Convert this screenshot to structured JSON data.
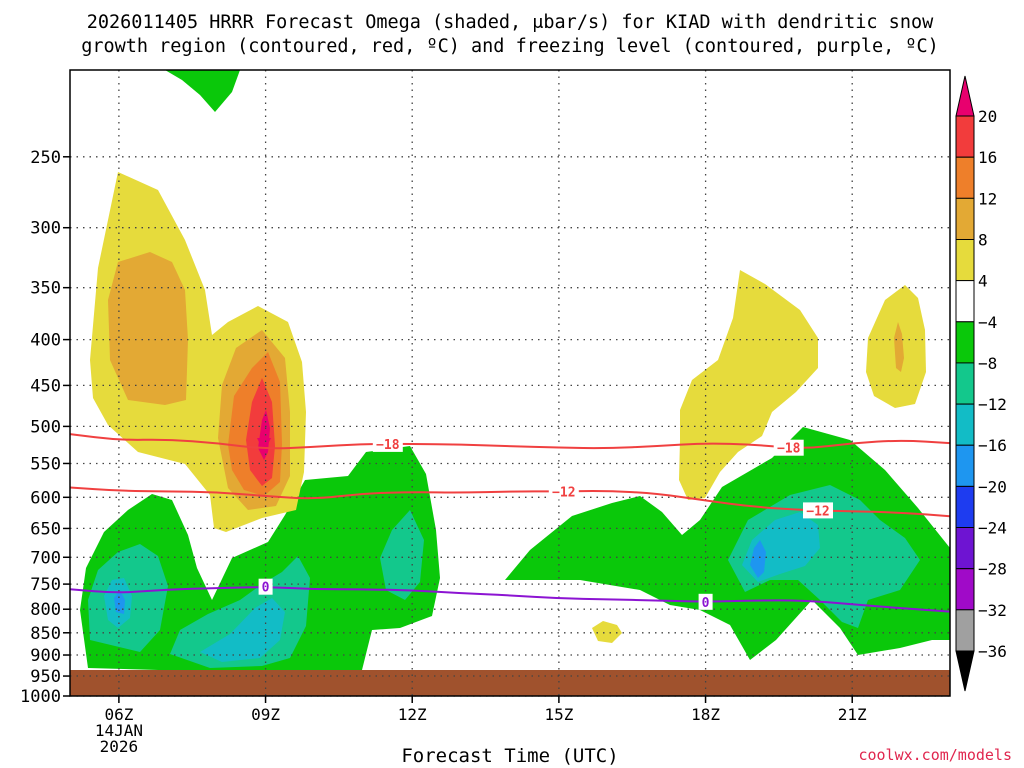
{
  "chart_data": {
    "type": "heatmap",
    "title_line1": "2026011405 HRRR Forecast Omega (shaded, μbar/s) for KIAD with dendritic snow",
    "title_line2": "growth region (contoured, red, ºC) and freezing level (contoured, purple, ºC)",
    "xlabel": "Forecast Time (UTC)",
    "credit": "coolwx.com/models",
    "x_ticks": [
      {
        "hour": 6,
        "label": "06Z",
        "sub1": "14JAN",
        "sub2": "2026"
      },
      {
        "hour": 9,
        "label": "09Z"
      },
      {
        "hour": 12,
        "label": "12Z"
      },
      {
        "hour": 15,
        "label": "15Z"
      },
      {
        "hour": 18,
        "label": "18Z"
      },
      {
        "hour": 21,
        "label": "21Z"
      }
    ],
    "xlim": [
      5,
      23
    ],
    "ylim_hpa": [
      1000,
      200
    ],
    "y_ticks": [
      250,
      300,
      350,
      400,
      450,
      500,
      550,
      600,
      650,
      700,
      750,
      800,
      850,
      900,
      950,
      1000
    ],
    "colorbar": {
      "labels": [
        "20",
        "16",
        "12",
        "8",
        "4",
        "−4",
        "−8",
        "−12",
        "−16",
        "−20",
        "−24",
        "−28",
        "−32",
        "−36"
      ],
      "colors": [
        "#e8006e",
        "#f23c3c",
        "#ee7f2a",
        "#e3a934",
        "#e6db3c",
        "#ffffff",
        "#0ac80a",
        "#13c88c",
        "#12bcc6",
        "#1e96f0",
        "#1e3cf0",
        "#6e14d2",
        "#a00ac8",
        "#a0a0a0",
        "#000000"
      ]
    },
    "contours": [
      {
        "name": "-18",
        "label": "−18",
        "color": "#f04040",
        "points": [
          [
            5,
            510
          ],
          [
            6,
            518
          ],
          [
            7,
            517
          ],
          [
            8,
            522
          ],
          [
            9,
            530
          ],
          [
            10,
            527
          ],
          [
            11,
            523
          ],
          [
            12,
            523
          ],
          [
            13,
            524
          ],
          [
            14,
            526
          ],
          [
            15,
            528
          ],
          [
            16,
            529
          ],
          [
            17,
            526
          ],
          [
            18,
            522
          ],
          [
            19,
            524
          ],
          [
            20,
            530
          ],
          [
            21,
            522
          ],
          [
            22,
            518
          ],
          [
            23,
            522
          ]
        ],
        "labels_at": [
          11.5,
          19.7
        ]
      },
      {
        "name": "-12",
        "label": "−12",
        "color": "#f04040",
        "points": [
          [
            5,
            585
          ],
          [
            6,
            590
          ],
          [
            7,
            591
          ],
          [
            8,
            592
          ],
          [
            9,
            598
          ],
          [
            10,
            603
          ],
          [
            11,
            594
          ],
          [
            12,
            592
          ],
          [
            13,
            593
          ],
          [
            14,
            591
          ],
          [
            15,
            591
          ],
          [
            16,
            590
          ],
          [
            17,
            594
          ],
          [
            18,
            605
          ],
          [
            19,
            615
          ],
          [
            20,
            620
          ],
          [
            21,
            622
          ],
          [
            22,
            624
          ],
          [
            23,
            630
          ]
        ],
        "labels_at": [
          15.1,
          20.3
        ]
      },
      {
        "name": "0",
        "label": "0",
        "color": "#8c14d2",
        "points": [
          [
            5,
            760
          ],
          [
            6,
            768
          ],
          [
            7,
            760
          ],
          [
            8,
            758
          ],
          [
            9,
            755
          ],
          [
            10,
            760
          ],
          [
            11,
            760
          ],
          [
            12,
            762
          ],
          [
            13,
            768
          ],
          [
            14,
            772
          ],
          [
            15,
            778
          ],
          [
            16,
            780
          ],
          [
            17,
            782
          ],
          [
            18,
            785
          ],
          [
            19,
            782
          ],
          [
            20,
            782
          ],
          [
            21,
            790
          ],
          [
            22,
            798
          ],
          [
            23,
            805
          ]
        ],
        "labels_at": [
          9.0,
          18.0
        ]
      }
    ],
    "ground_hpa": 990
  }
}
